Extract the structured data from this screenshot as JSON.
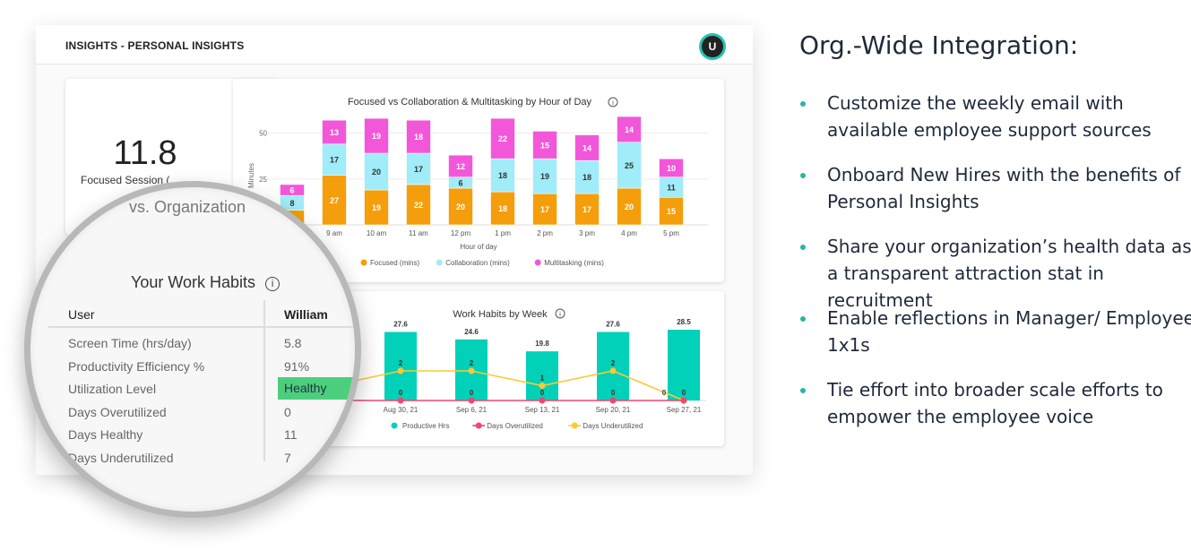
{
  "header": {
    "title": "INSIGHTS - PERSONAL INSIGHTS",
    "avatar_initial": "U"
  },
  "kpi": {
    "value": "11.8",
    "label": "Focused Session (",
    "lens_text": "vs. Organization"
  },
  "hour_chart": {
    "title": "Focused vs Collaboration & Multitasking by Hour of Day",
    "info_icon": "info-icon"
  },
  "week_chart": {
    "title": "Work Habits by Week",
    "info_icon": "info-icon"
  },
  "chart_data": [
    {
      "type": "bar",
      "stacked": true,
      "title": "Focused vs Collaboration & Multitasking by Hour of Day",
      "categories": [
        null,
        "9 am",
        "10 am",
        "11 am",
        "12 pm",
        "1 pm",
        "2 pm",
        "3 pm",
        "4 pm",
        "5 pm"
      ],
      "xlabel": "Hour of day",
      "ylabel": "Minutes",
      "ylim": [
        0,
        60
      ],
      "yticks": [
        25,
        50
      ],
      "grid": true,
      "legend": "bottom",
      "series": [
        {
          "name": "Focused (mins)",
          "color": "#f59e0b",
          "values": [
            8,
            27,
            19,
            22,
            20,
            18,
            17,
            17,
            20,
            15
          ],
          "labels": [
            null,
            "27",
            "19",
            "22",
            "20",
            "18",
            "17",
            "17",
            "20",
            "15"
          ]
        },
        {
          "name": "Collaboration (mins)",
          "color": "#a0ecf8",
          "values": [
            8,
            17,
            20,
            17,
            6,
            18,
            19,
            18,
            25,
            11
          ],
          "labels": [
            "8",
            "17",
            "20",
            "17",
            "6",
            "18",
            "19",
            "18",
            "25",
            "11"
          ]
        },
        {
          "name": "Multitasking (mins)",
          "color": "#f257da",
          "values": [
            6,
            13,
            19,
            18,
            12,
            22,
            15,
            14,
            14,
            10
          ],
          "labels": [
            "6",
            "13",
            "19",
            "18",
            "12",
            "22",
            "15",
            "14",
            "14",
            "10"
          ]
        }
      ]
    },
    {
      "type": "bar+line",
      "title": "Work Habits by Week",
      "categories": [
        "Aug 30, 21",
        "Sep 6, 21",
        "Sep 13, 21",
        "Sep 20, 21",
        "Sep 27, 21"
      ],
      "legend": "bottom",
      "series": [
        {
          "name": "Productive Hrs",
          "type": "bar",
          "color": "#00d1b8",
          "values": [
            27.6,
            24.6,
            19.8,
            27.6,
            28.5
          ]
        },
        {
          "name": "Days Overutilized",
          "type": "line",
          "color": "#f2466e",
          "values": [
            0,
            0,
            0,
            0,
            0
          ]
        },
        {
          "name": "Days Underutilized",
          "type": "line",
          "color": "#fcc934",
          "values": [
            2,
            2,
            1,
            2,
            0
          ]
        }
      ]
    }
  ],
  "work_habits": {
    "title": "Your Work Habits",
    "col_user": "User",
    "col_name": "William",
    "rows": [
      {
        "label": "Screen Time (hrs/day)",
        "value": "5.8"
      },
      {
        "label": "Productivity Efficiency %",
        "value": "91%"
      },
      {
        "label": "Utilization Level",
        "value": "Healthy",
        "status_color": "#4ccf7c"
      },
      {
        "label": "Days Overutilized",
        "value": "0"
      },
      {
        "label": "Days Healthy",
        "value": "11"
      },
      {
        "label": "Days Underutilized",
        "value": "7"
      }
    ]
  },
  "side": {
    "title": "Org.-Wide Integration:",
    "bullet_color": "#2bb59f",
    "bullets": [
      "Customize the weekly email with available employee support sources",
      "Onboard New Hires with the benefits of Personal Insights",
      "Share your organization’s health data as a transparent attraction stat in recruitment",
      "Enable reflections in Manager/ Employee 1x1s",
      "Tie effort into broader scale efforts to empower the employee voice"
    ]
  }
}
